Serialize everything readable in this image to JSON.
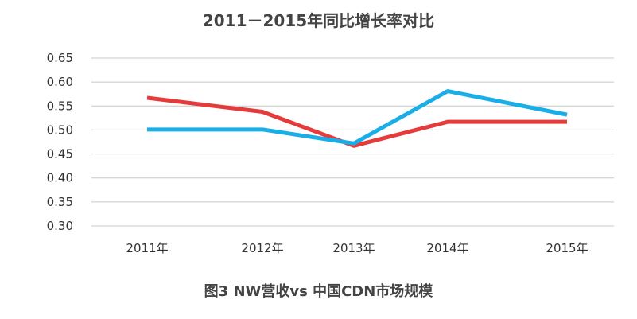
{
  "chart_data": {
    "type": "line",
    "title": "2011－2015年同比增长率对比",
    "categories": [
      "2011年",
      "2012年",
      "2013年",
      "2014年",
      "2015年"
    ],
    "ylim": [
      0.3,
      0.65
    ],
    "yticks": [
      "0.65",
      "0.60",
      "0.55",
      "0.50",
      "0.45",
      "0.40",
      "0.35",
      "0.30"
    ],
    "grid": true,
    "series": [
      {
        "color": "#e63b3b",
        "values": [
          0.567,
          0.538,
          0.467,
          0.517,
          0.517
        ]
      },
      {
        "color": "#1aaee8",
        "values": [
          0.501,
          0.501,
          0.472,
          0.581,
          0.532
        ]
      }
    ]
  },
  "caption": "图3   NW营收vs 中国CDN市场规模"
}
